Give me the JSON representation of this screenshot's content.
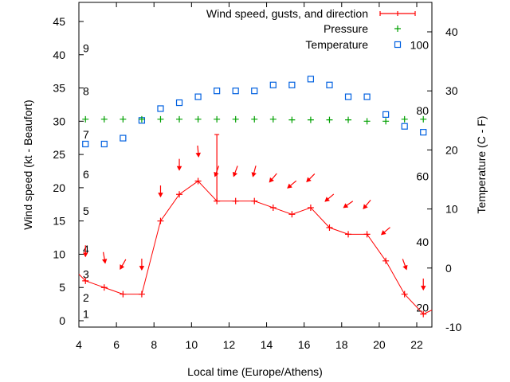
{
  "chart_data": {
    "type": "line",
    "xlabel": "Local time (Europe/Athens)",
    "ylabel_left": "Wind speed (kt - Beaufort)",
    "ylabel_right": "Temperature (C - F)",
    "xlim": [
      4,
      23
    ],
    "ylim_left": [
      -1,
      48
    ],
    "ylim_right_celsius": [
      -10,
      45
    ],
    "x_ticks": [
      4,
      6,
      8,
      10,
      12,
      14,
      16,
      18,
      20,
      22
    ],
    "y_left_ticks": [
      0,
      5,
      10,
      15,
      20,
      25,
      30,
      35,
      40,
      45
    ],
    "y_right_ticks_celsius": [
      -10,
      0,
      10,
      20,
      30,
      40
    ],
    "fahrenheit_labels": [
      {
        "value": 20,
        "celsius": -6.67
      },
      {
        "value": 40,
        "celsius": 4.44
      },
      {
        "value": 60,
        "celsius": 15.56
      },
      {
        "value": 80,
        "celsius": 26.67
      },
      {
        "value": 100,
        "celsius": 37.78
      }
    ],
    "beaufort_labels": [
      {
        "label": "1",
        "kt": 1
      },
      {
        "label": "2",
        "kt": 3.5
      },
      {
        "label": "3",
        "kt": 7
      },
      {
        "label": "4",
        "kt": 10.8
      },
      {
        "label": "5",
        "kt": 16.5
      },
      {
        "label": "6",
        "kt": 22
      },
      {
        "label": "7",
        "kt": 28
      },
      {
        "label": "8",
        "kt": 34.5
      },
      {
        "label": "9",
        "kt": 41
      }
    ],
    "legend": {
      "placement": "top-right",
      "entries": [
        "Wind speed, gusts, and direction",
        "Pressure",
        "Temperature"
      ]
    },
    "series": [
      {
        "name": "Wind speed, gusts, and direction",
        "color": "#ff0000",
        "x": [
          4.35,
          5.35,
          6.35,
          7.35,
          8.35,
          9.35,
          10.35,
          11.35,
          12.35,
          13.35,
          14.35,
          15.35,
          16.35,
          17.35,
          18.35,
          19.35,
          20.35,
          21.35,
          22.35
        ],
        "values": [
          6,
          5,
          4,
          4,
          15,
          19,
          21,
          18,
          18,
          18,
          17,
          16,
          17,
          14,
          13,
          13,
          9,
          4,
          1
        ],
        "leading_value": 7,
        "trailing_value": 1.6,
        "gusts": [
          {
            "x": 11.35,
            "value": 28
          }
        ],
        "direction_deg": [
          0,
          350,
          30,
          0,
          0,
          0,
          355,
          20,
          20,
          15,
          40,
          50,
          45,
          50,
          55,
          40,
          50,
          340,
          0
        ]
      },
      {
        "name": "Pressure",
        "color": "#00a000",
        "x": [
          4.35,
          5.35,
          6.35,
          7.35,
          8.35,
          9.35,
          10.35,
          11.35,
          12.35,
          13.35,
          14.35,
          15.35,
          16.35,
          17.35,
          18.35,
          19.35,
          20.35,
          21.35,
          22.35
        ],
        "values": [
          30.3,
          30.3,
          30.3,
          30.3,
          30.3,
          30.3,
          30.3,
          30.3,
          30.3,
          30.3,
          30.3,
          30.2,
          30.2,
          30.2,
          30.2,
          30.0,
          30.0,
          30.3,
          30.3
        ]
      },
      {
        "name": "Temperature",
        "color": "#0060e0",
        "x": [
          4.35,
          5.35,
          6.35,
          7.35,
          8.35,
          9.35,
          10.35,
          11.35,
          12.35,
          13.35,
          14.35,
          15.35,
          16.35,
          17.35,
          18.35,
          19.35,
          20.35,
          21.35,
          22.35
        ],
        "values_celsius": [
          21,
          21,
          22,
          25,
          27,
          28,
          29,
          30,
          30,
          30,
          31,
          31,
          32,
          31,
          29,
          29,
          26,
          24,
          23
        ]
      }
    ]
  }
}
